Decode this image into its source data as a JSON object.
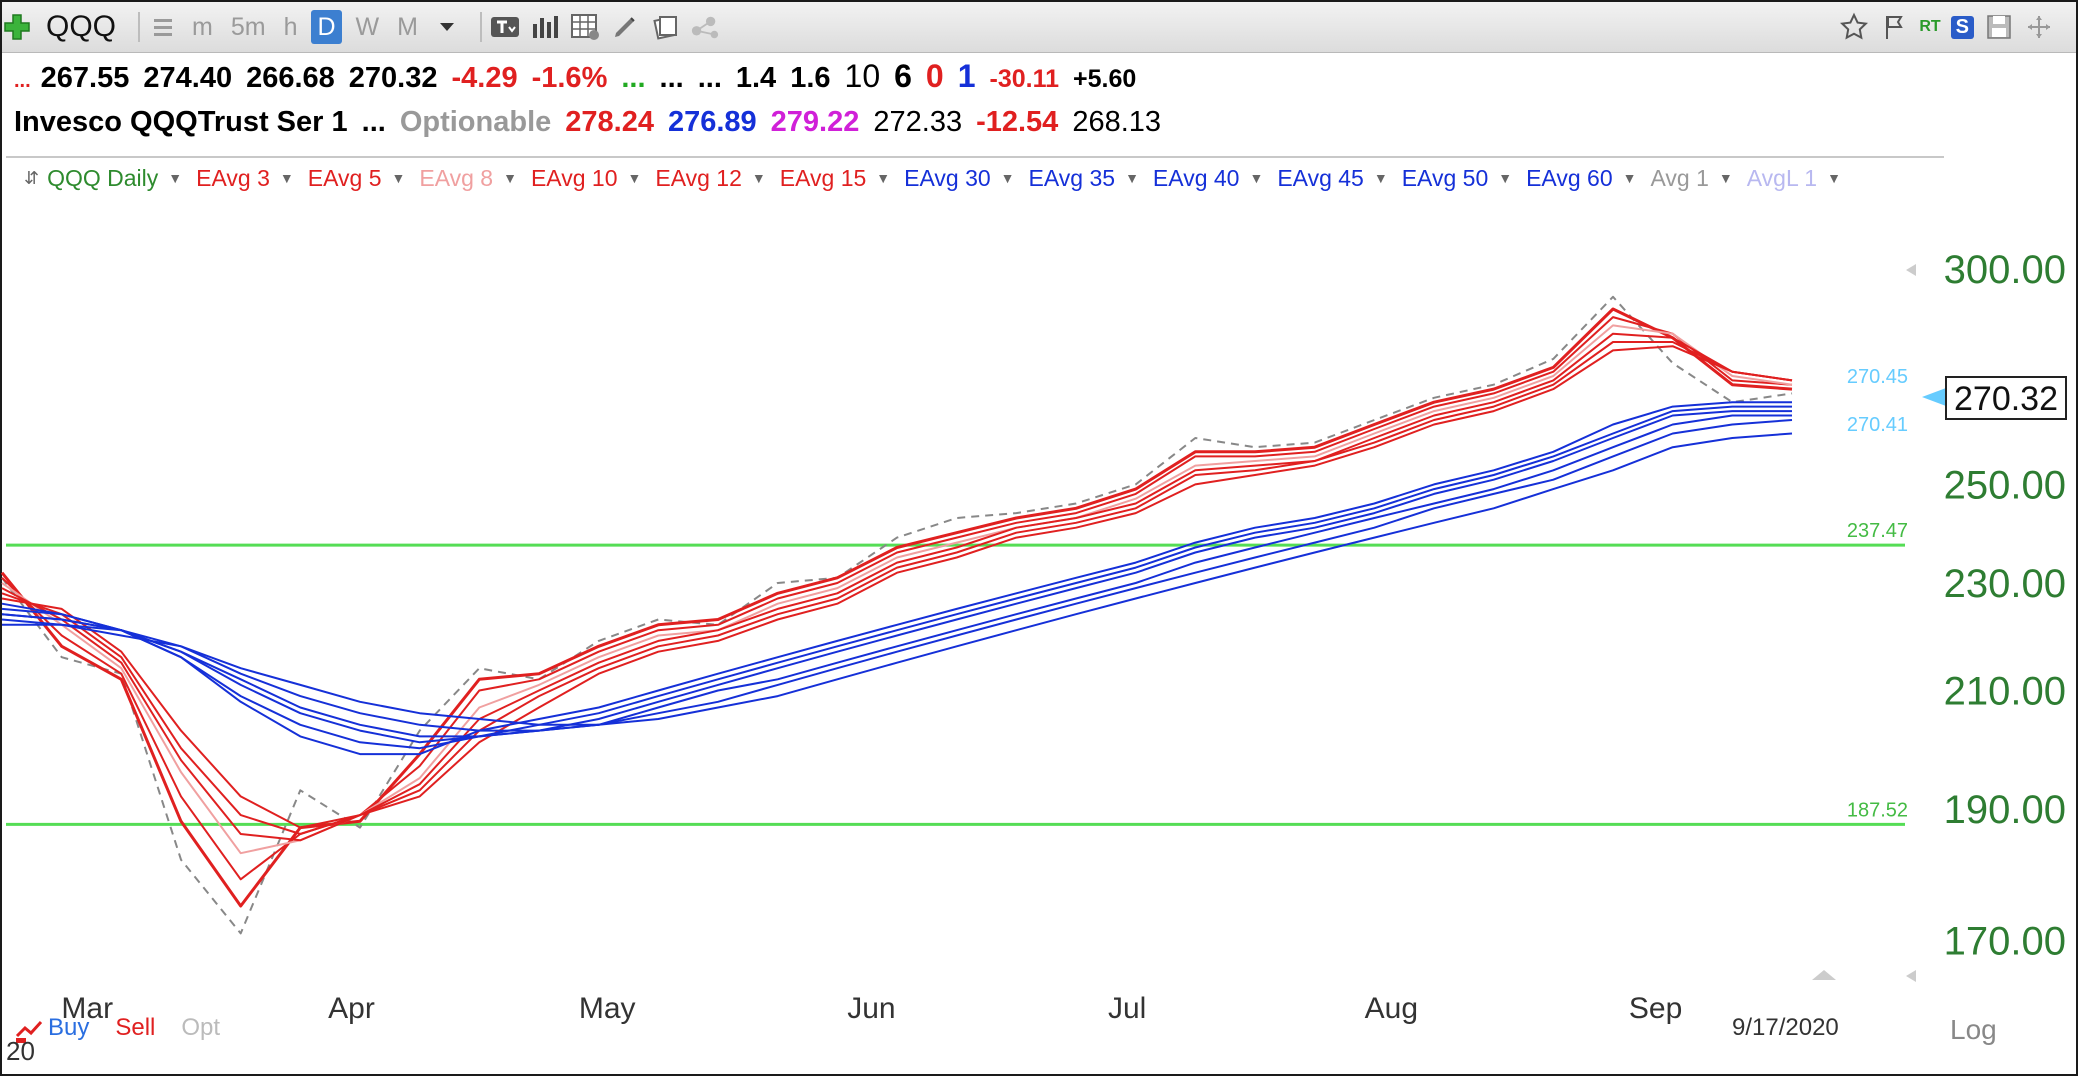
{
  "toolbar": {
    "symbol": "QQQ",
    "intervals": [
      "m",
      "5m",
      "h",
      "D",
      "W",
      "M"
    ],
    "selected_interval": "D",
    "icons": [
      "add-icon",
      "list-icon",
      "dropdown-icon",
      "text-tool-icon",
      "bar-style-icon",
      "table-icon",
      "draw-icon",
      "layers-icon",
      "share-icon",
      "star-icon",
      "flag-icon",
      "rt-icon",
      "s-icon",
      "save-icon",
      "expand-icon"
    ],
    "right_labels": {
      "rt": "RT",
      "s": "S"
    }
  },
  "quote_row1": {
    "open": "267.55",
    "high": "274.40",
    "low": "266.68",
    "close": "270.32",
    "change": "-4.29",
    "change_pct": "-1.6%",
    "dots_red": "...",
    "dots_green": "...",
    "dots_1": "...",
    "dots_2": "...",
    "v1": "1.4",
    "v2": "1.6",
    "n10": "10",
    "n6": "6",
    "n0": "0",
    "n1": "1",
    "val_neg": "-30.11",
    "val_pos": "+5.60"
  },
  "quote_row2": {
    "name": "Invesco QQQTrust Ser 1",
    "dots": "...",
    "optionable": "Optionable",
    "high52": "278.24",
    "blue_val": "276.89",
    "mag_val": "279.22",
    "v_a": "272.33",
    "change": "-12.54",
    "v_b": "268.13"
  },
  "legend": [
    {
      "label": "QQQ Daily",
      "color": "#2e8b2e"
    },
    {
      "label": "EAvg 3",
      "color": "#e02020"
    },
    {
      "label": "EAvg 5",
      "color": "#e02020"
    },
    {
      "label": "EAvg 8",
      "color": "#f0a0a0"
    },
    {
      "label": "EAvg 10",
      "color": "#e02020"
    },
    {
      "label": "EAvg 12",
      "color": "#e02020"
    },
    {
      "label": "EAvg 15",
      "color": "#e02020"
    },
    {
      "label": "EAvg 30",
      "color": "#1530d8"
    },
    {
      "label": "EAvg 35",
      "color": "#1530d8"
    },
    {
      "label": "EAvg 40",
      "color": "#1530d8"
    },
    {
      "label": "EAvg 45",
      "color": "#1530d8"
    },
    {
      "label": "EAvg 50",
      "color": "#1530d8"
    },
    {
      "label": "EAvg 60",
      "color": "#1530d8"
    },
    {
      "label": "Avg 1",
      "color": "#999999"
    },
    {
      "label": "AvgL 1",
      "color": "#b8b8f0"
    }
  ],
  "bottom": {
    "buy": "Buy",
    "sell": "Sell",
    "opt": "Opt",
    "year": "20",
    "date": "9/17/2020",
    "log": "Log"
  },
  "chart_data": {
    "type": "line",
    "scale": "log",
    "ylim": [
      163,
      318
    ],
    "y_ticks": [
      300,
      250,
      230,
      210,
      190,
      170
    ],
    "y_tick_labels": [
      "300.00",
      "250.00",
      "230.00",
      "210.00",
      "190.00",
      "170.00"
    ],
    "x_tick_labels": [
      "Mar",
      "Apr",
      "May",
      "Jun",
      "Jul",
      "Aug",
      "Sep"
    ],
    "last_price": "270.32",
    "price_labels": [
      "270.45",
      "270.41"
    ],
    "horizontal_lines": [
      {
        "value": 237.47,
        "label": "237.47",
        "color": "#55dd55"
      },
      {
        "value": 187.52,
        "label": "187.52",
        "color": "#55dd55"
      }
    ],
    "x_dates": [
      "2020-02-20",
      "2020-02-27",
      "2020-03-05",
      "2020-03-12",
      "2020-03-19",
      "2020-03-26",
      "2020-04-02",
      "2020-04-09",
      "2020-04-16",
      "2020-04-23",
      "2020-04-30",
      "2020-05-07",
      "2020-05-14",
      "2020-05-21",
      "2020-05-28",
      "2020-06-04",
      "2020-06-11",
      "2020-06-18",
      "2020-06-25",
      "2020-07-02",
      "2020-07-09",
      "2020-07-16",
      "2020-07-23",
      "2020-07-30",
      "2020-08-06",
      "2020-08-13",
      "2020-08-20",
      "2020-08-27",
      "2020-09-03",
      "2020-09-10",
      "2020-09-17"
    ],
    "series": [
      {
        "color": "#888888",
        "dashed": true,
        "values": [
          231,
          216,
          213,
          182,
          171,
          193,
          187,
          203,
          214,
          212,
          219,
          223,
          222,
          230,
          231,
          239,
          243,
          244,
          246,
          250,
          260,
          258,
          259,
          264,
          269,
          272,
          278,
          293,
          277,
          268,
          270
        ]
      },
      {
        "color": "#e02020",
        "values": [
          232,
          218,
          212,
          188,
          175,
          187,
          188,
          199,
          212,
          213,
          218,
          222,
          223,
          228,
          231,
          237,
          240,
          243,
          245,
          249,
          257,
          257,
          258,
          263,
          268,
          271,
          276,
          290,
          283,
          272,
          271
        ]
      },
      {
        "color": "#e02020",
        "values": [
          231,
          220,
          213,
          192,
          179,
          186,
          189,
          197,
          210,
          212,
          217,
          221,
          222,
          227,
          230,
          236,
          239,
          242,
          244,
          248,
          256,
          256,
          257,
          262,
          267,
          270,
          275,
          288,
          284,
          273,
          272
        ]
      },
      {
        "color": "#f0a0a0",
        "values": [
          230,
          222,
          214,
          196,
          183,
          185,
          189,
          195,
          207,
          211,
          216,
          220,
          221,
          226,
          229,
          235,
          238,
          241,
          243,
          247,
          254,
          255,
          256,
          261,
          266,
          269,
          274,
          286,
          284,
          274,
          272
        ]
      },
      {
        "color": "#e02020",
        "values": [
          229,
          223,
          215,
          198,
          186,
          185,
          189,
          194,
          205,
          210,
          215,
          219,
          221,
          225,
          228,
          234,
          237,
          241,
          243,
          246,
          253,
          254,
          255,
          260,
          265,
          268,
          273,
          284,
          283,
          275,
          273
        ]
      },
      {
        "color": "#e02020",
        "values": [
          228,
          224,
          216,
          200,
          189,
          186,
          189,
          193,
          203,
          209,
          214,
          218,
          220,
          224,
          227,
          233,
          236,
          240,
          242,
          245,
          252,
          253,
          255,
          259,
          264,
          267,
          272,
          282,
          282,
          275,
          273
        ]
      },
      {
        "color": "#e02020",
        "values": [
          227,
          225,
          217,
          203,
          192,
          187,
          189,
          192,
          201,
          207,
          213,
          217,
          219,
          223,
          226,
          232,
          235,
          239,
          241,
          244,
          250,
          252,
          254,
          258,
          263,
          266,
          271,
          280,
          281,
          275,
          273
        ]
      },
      {
        "color": "#1530d8",
        "values": [
          226,
          224,
          221,
          216,
          208,
          202,
          199,
          199,
          203,
          205,
          207,
          210,
          213,
          216,
          219,
          222,
          225,
          228,
          231,
          234,
          238,
          241,
          243,
          246,
          250,
          253,
          257,
          263,
          267,
          268,
          268
        ]
      },
      {
        "color": "#1530d8",
        "values": [
          225,
          224,
          221,
          216,
          209,
          204,
          201,
          200,
          202,
          204,
          206,
          209,
          212,
          215,
          218,
          221,
          224,
          227,
          230,
          233,
          237,
          240,
          242,
          245,
          249,
          252,
          256,
          261,
          266,
          267,
          267
        ]
      },
      {
        "color": "#1530d8",
        "values": [
          224,
          223,
          221,
          217,
          211,
          206,
          203,
          201,
          202,
          203,
          205,
          208,
          211,
          214,
          217,
          220,
          223,
          226,
          229,
          232,
          236,
          239,
          241,
          244,
          248,
          251,
          255,
          260,
          265,
          266,
          266
        ]
      },
      {
        "color": "#1530d8",
        "values": [
          224,
          223,
          221,
          217,
          212,
          207,
          204,
          202,
          202,
          203,
          204,
          207,
          210,
          212,
          215,
          218,
          221,
          224,
          227,
          230,
          234,
          237,
          240,
          243,
          246,
          249,
          253,
          258,
          263,
          265,
          265
        ]
      },
      {
        "color": "#1530d8",
        "values": [
          223,
          222,
          221,
          218,
          213,
          209,
          206,
          204,
          203,
          203,
          204,
          206,
          208,
          211,
          214,
          217,
          220,
          223,
          226,
          229,
          232,
          235,
          238,
          241,
          245,
          248,
          251,
          256,
          261,
          263,
          264
        ]
      },
      {
        "color": "#1530d8",
        "values": [
          222,
          222,
          220,
          218,
          214,
          211,
          208,
          206,
          205,
          204,
          204,
          205,
          207,
          209,
          212,
          215,
          218,
          221,
          224,
          227,
          230,
          233,
          236,
          239,
          242,
          245,
          249,
          253,
          258,
          260,
          261
        ]
      }
    ]
  }
}
